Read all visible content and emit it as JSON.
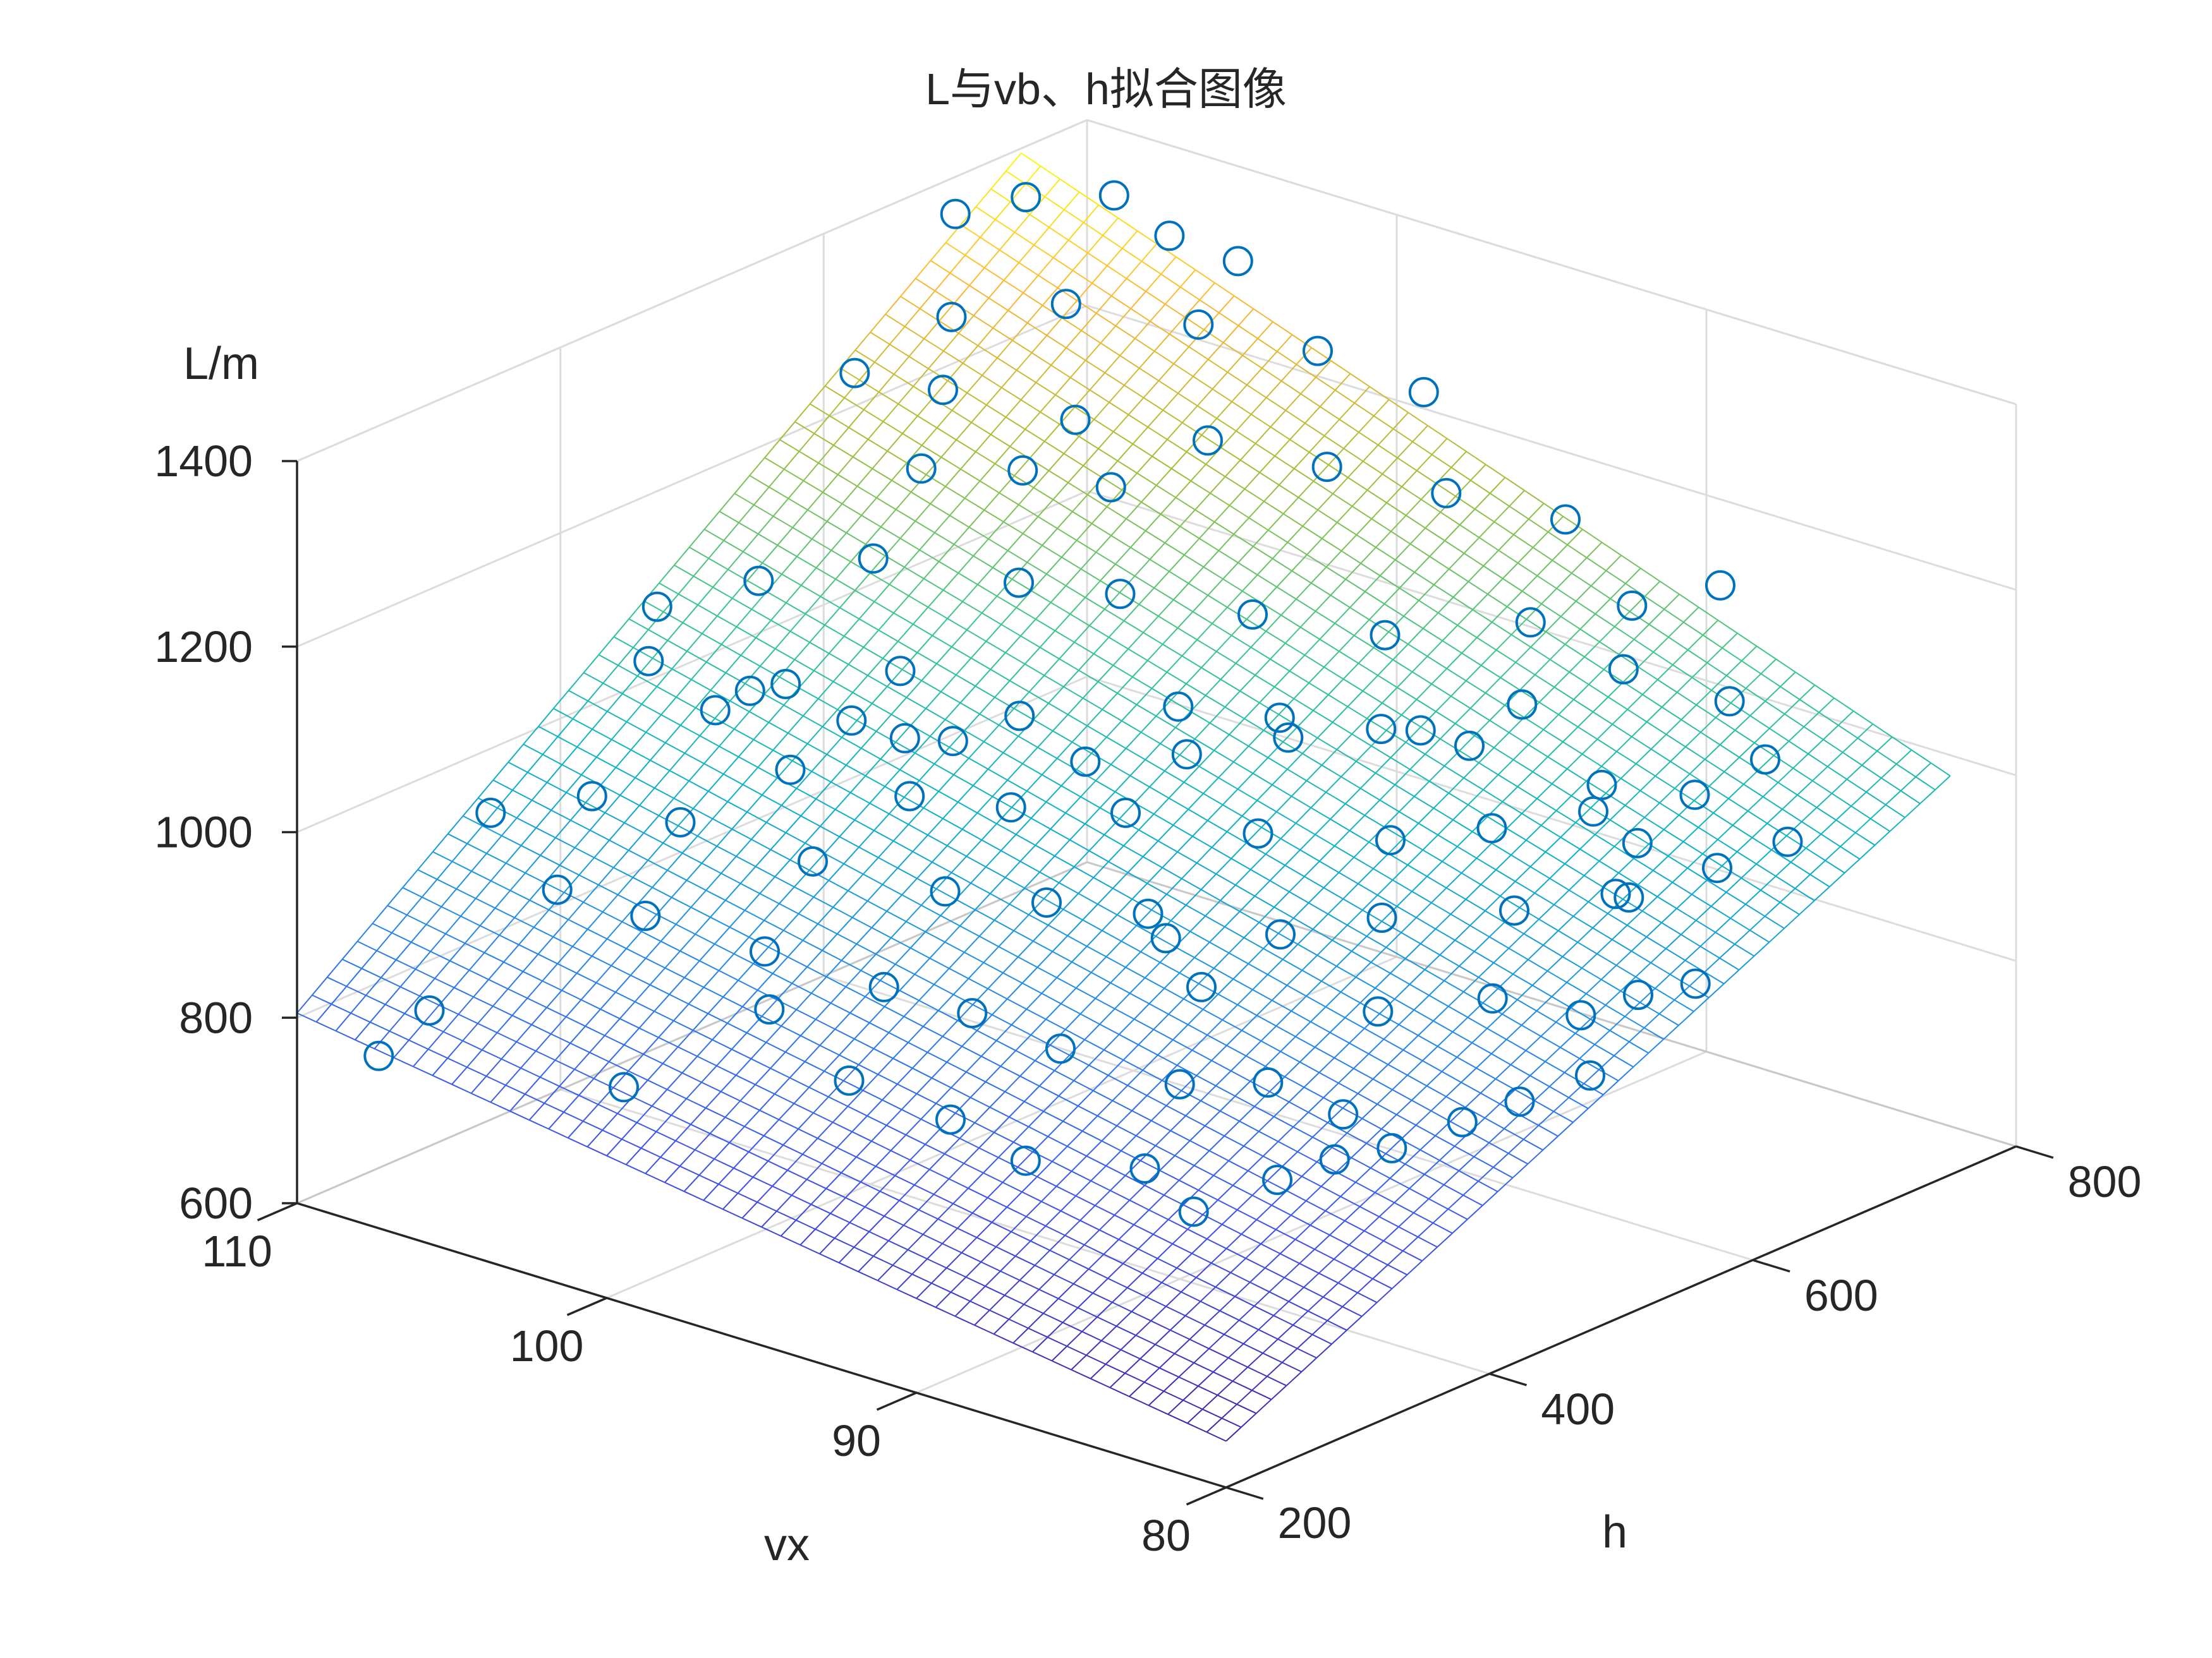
{
  "chart_data": {
    "type": "scatter",
    "subtype": "scatter3d-with-fitted-surface",
    "title": "L与vb、h拟合图像",
    "xlabel": "vx",
    "ylabel": "h",
    "zlabel": "L/m",
    "xlim": [
      80,
      110
    ],
    "ylim": [
      200,
      800
    ],
    "zlim": [
      600,
      1400
    ],
    "xticks": [
      "80",
      "90",
      "100",
      "110"
    ],
    "yticks": [
      "200",
      "400",
      "600",
      "800"
    ],
    "zticks": [
      "600",
      "800",
      "1000",
      "1200",
      "1400"
    ],
    "grid": true,
    "colormap": "parula",
    "colors": {
      "marker": "#0072BD",
      "axis": "#262626",
      "grid": "#dcdcdc"
    },
    "surface": {
      "x_range": [
        80,
        110
      ],
      "y_range": [
        200,
        750
      ],
      "corner_values": [
        {
          "x": 80,
          "y": 200,
          "z": 650
        },
        {
          "x": 110,
          "y": 200,
          "z": 805
        },
        {
          "x": 80,
          "y": 750,
          "z": 1030
        },
        {
          "x": 110,
          "y": 750,
          "z": 1395
        }
      ]
    },
    "points": [
      {
        "x": 108,
        "y": 215,
        "z": 770
      },
      {
        "x": 107,
        "y": 230,
        "z": 820
      },
      {
        "x": 102,
        "y": 260,
        "z": 770
      },
      {
        "x": 99,
        "y": 300,
        "z": 860
      },
      {
        "x": 96,
        "y": 290,
        "z": 820
      },
      {
        "x": 94,
        "y": 320,
        "z": 780
      },
      {
        "x": 92,
        "y": 330,
        "z": 750
      },
      {
        "x": 89,
        "y": 350,
        "z": 760
      },
      {
        "x": 87,
        "y": 340,
        "z": 740
      },
      {
        "x": 86,
        "y": 380,
        "z": 760
      },
      {
        "x": 85,
        "y": 400,
        "z": 780
      },
      {
        "x": 84,
        "y": 420,
        "z": 790
      },
      {
        "x": 83,
        "y": 450,
        "z": 810
      },
      {
        "x": 82,
        "y": 470,
        "z": 830
      },
      {
        "x": 81,
        "y": 500,
        "z": 850
      },
      {
        "x": 88,
        "y": 420,
        "z": 820
      },
      {
        "x": 90,
        "y": 400,
        "z": 810
      },
      {
        "x": 93,
        "y": 380,
        "z": 830
      },
      {
        "x": 95,
        "y": 360,
        "z": 860
      },
      {
        "x": 97,
        "y": 340,
        "z": 880
      },
      {
        "x": 100,
        "y": 320,
        "z": 900
      },
      {
        "x": 103,
        "y": 300,
        "z": 920
      },
      {
        "x": 105,
        "y": 280,
        "z": 940
      },
      {
        "x": 108,
        "y": 300,
        "z": 980
      },
      {
        "x": 106,
        "y": 330,
        "z": 1000
      },
      {
        "x": 104,
        "y": 350,
        "z": 980
      },
      {
        "x": 101,
        "y": 380,
        "z": 950
      },
      {
        "x": 98,
        "y": 410,
        "z": 930
      },
      {
        "x": 96,
        "y": 440,
        "z": 920
      },
      {
        "x": 94,
        "y": 470,
        "z": 910
      },
      {
        "x": 91,
        "y": 500,
        "z": 900
      },
      {
        "x": 89,
        "y": 530,
        "z": 920
      },
      {
        "x": 86,
        "y": 560,
        "z": 940
      },
      {
        "x": 84,
        "y": 590,
        "z": 960
      },
      {
        "x": 82,
        "y": 620,
        "z": 990
      },
      {
        "x": 81,
        "y": 650,
        "z": 1010
      },
      {
        "x": 83,
        "y": 680,
        "z": 1060
      },
      {
        "x": 85,
        "y": 700,
        "z": 1090
      },
      {
        "x": 88,
        "y": 690,
        "z": 1100
      },
      {
        "x": 90,
        "y": 660,
        "z": 1060
      },
      {
        "x": 92,
        "y": 630,
        "z": 1030
      },
      {
        "x": 95,
        "y": 600,
        "z": 1010
      },
      {
        "x": 97,
        "y": 570,
        "z": 990
      },
      {
        "x": 99,
        "y": 540,
        "z": 980
      },
      {
        "x": 102,
        "y": 510,
        "z": 990
      },
      {
        "x": 104,
        "y": 480,
        "z": 1010
      },
      {
        "x": 106,
        "y": 450,
        "z": 1040
      },
      {
        "x": 108,
        "y": 420,
        "z": 1070
      },
      {
        "x": 109,
        "y": 450,
        "z": 1100
      },
      {
        "x": 107,
        "y": 480,
        "z": 1130
      },
      {
        "x": 105,
        "y": 520,
        "z": 1150
      },
      {
        "x": 102,
        "y": 560,
        "z": 1130
      },
      {
        "x": 100,
        "y": 590,
        "z": 1120
      },
      {
        "x": 97,
        "y": 620,
        "z": 1110
      },
      {
        "x": 94,
        "y": 650,
        "z": 1100
      },
      {
        "x": 91,
        "y": 690,
        "z": 1120
      },
      {
        "x": 89,
        "y": 720,
        "z": 1140
      },
      {
        "x": 87,
        "y": 740,
        "z": 1170
      },
      {
        "x": 92,
        "y": 740,
        "z": 1190
      },
      {
        "x": 95,
        "y": 720,
        "z": 1200
      },
      {
        "x": 98,
        "y": 700,
        "z": 1210
      },
      {
        "x": 101,
        "y": 680,
        "z": 1220
      },
      {
        "x": 104,
        "y": 650,
        "z": 1230
      },
      {
        "x": 107,
        "y": 620,
        "z": 1250
      },
      {
        "x": 109,
        "y": 600,
        "z": 1260
      },
      {
        "x": 108,
        "y": 650,
        "z": 1300
      },
      {
        "x": 106,
        "y": 690,
        "z": 1310
      },
      {
        "x": 103,
        "y": 720,
        "z": 1300
      },
      {
        "x": 100,
        "y": 740,
        "z": 1290
      },
      {
        "x": 97,
        "y": 750,
        "z": 1270
      },
      {
        "x": 110,
        "y": 700,
        "z": 1360
      },
      {
        "x": 109,
        "y": 730,
        "z": 1370
      },
      {
        "x": 107,
        "y": 750,
        "z": 1380
      },
      {
        "x": 105,
        "y": 745,
        "z": 1360
      },
      {
        "x": 103,
        "y": 750,
        "z": 1350
      },
      {
        "x": 100,
        "y": 430,
        "z": 1000
      },
      {
        "x": 98,
        "y": 460,
        "z": 990
      },
      {
        "x": 96,
        "y": 500,
        "z": 980
      },
      {
        "x": 93,
        "y": 530,
        "z": 970
      },
      {
        "x": 90,
        "y": 560,
        "z": 975
      },
      {
        "x": 88,
        "y": 590,
        "z": 990
      },
      {
        "x": 86,
        "y": 620,
        "z": 1010
      },
      {
        "x": 84,
        "y": 650,
        "z": 1030
      },
      {
        "x": 93,
        "y": 460,
        "z": 900
      },
      {
        "x": 91,
        "y": 440,
        "z": 880
      },
      {
        "x": 87,
        "y": 480,
        "z": 870
      },
      {
        "x": 85,
        "y": 520,
        "z": 880
      },
      {
        "x": 103,
        "y": 410,
        "z": 1010
      },
      {
        "x": 101,
        "y": 450,
        "z": 1040
      },
      {
        "x": 99,
        "y": 490,
        "z": 1060
      },
      {
        "x": 96,
        "y": 540,
        "z": 1070
      },
      {
        "x": 94,
        "y": 570,
        "z": 1060
      },
      {
        "x": 92,
        "y": 600,
        "z": 1050
      },
      {
        "x": 90,
        "y": 620,
        "z": 1040
      },
      {
        "x": 105,
        "y": 400,
        "z": 1060
      },
      {
        "x": 104,
        "y": 430,
        "z": 1080
      },
      {
        "x": 102,
        "y": 470,
        "z": 1090
      },
      {
        "x": 106,
        "y": 580,
        "z": 1200
      },
      {
        "x": 104,
        "y": 610,
        "z": 1200
      },
      {
        "x": 102,
        "y": 630,
        "z": 1190
      },
      {
        "x": 86,
        "y": 430,
        "z": 800
      },
      {
        "x": 82,
        "y": 560,
        "z": 890
      },
      {
        "x": 81,
        "y": 580,
        "z": 900
      },
      {
        "x": 83,
        "y": 540,
        "z": 870
      },
      {
        "x": 84,
        "y": 600,
        "z": 950
      },
      {
        "x": 85,
        "y": 630,
        "z": 980
      },
      {
        "x": 87,
        "y": 650,
        "z": 1010
      }
    ]
  }
}
